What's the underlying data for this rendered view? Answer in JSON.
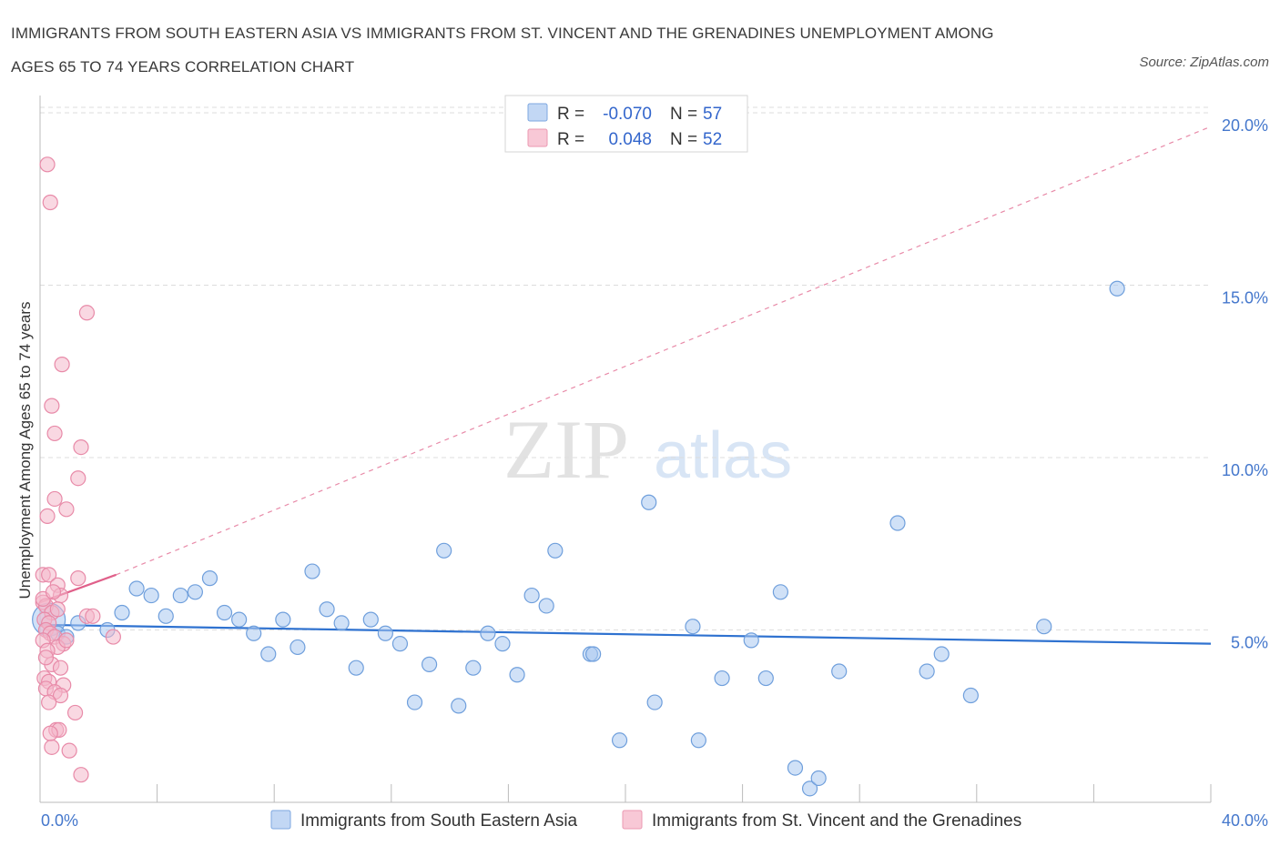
{
  "title": {
    "line1": "IMMIGRANTS FROM SOUTH EASTERN ASIA VS IMMIGRANTS FROM ST. VINCENT AND THE GRENADINES UNEMPLOYMENT AMONG",
    "line2": "AGES 65 TO 74 YEARS CORRELATION CHART"
  },
  "source": "Source: ZipAtlas.com",
  "watermark": {
    "zip": "ZIP",
    "atlas": "atlas"
  },
  "stats": {
    "r_label": "R =",
    "n_label": "N =",
    "series1": {
      "r": "-0.070",
      "n": "57"
    },
    "series2": {
      "r": "0.048",
      "n": "52"
    }
  },
  "colors": {
    "blue_fill": "#a9c8f0",
    "blue_stroke": "#6f9fdc",
    "blue_line": "#2f72d0",
    "pink_fill": "#f4b8cb",
    "pink_stroke": "#e88aa8",
    "pink_line": "#e0608a",
    "grid": "#dddddd",
    "axis": "#bbbbbb"
  },
  "chart_data": {
    "type": "scatter",
    "title": "IMMIGRANTS FROM SOUTH EASTERN ASIA VS IMMIGRANTS FROM ST. VINCENT AND THE GRENADINES UNEMPLOYMENT AMONG AGES 65 TO 74 YEARS CORRELATION CHART",
    "xlabel": "",
    "ylabel": "Unemployment Among Ages 65 to 74 years",
    "xlim": [
      0,
      40
    ],
    "ylim": [
      0,
      20.5
    ],
    "x_tick_labels": [
      "0.0%",
      "40.0%"
    ],
    "y_ticks": [
      5,
      10,
      15,
      20
    ],
    "y_tick_labels": [
      "5.0%",
      "10.0%",
      "15.0%",
      "20.0%"
    ],
    "grid": true,
    "legend_position": "bottom-center",
    "series": [
      {
        "name": "Immigrants from South Eastern Asia",
        "color": "blue",
        "r": -0.07,
        "n": 57,
        "trend": {
          "x": [
            0,
            40
          ],
          "y": [
            5.15,
            4.6
          ]
        },
        "points": [
          [
            0.3,
            5.3
          ],
          [
            0.6,
            4.9
          ],
          [
            1.3,
            5.2
          ],
          [
            2.3,
            5.0
          ],
          [
            2.8,
            5.5
          ],
          [
            3.3,
            6.2
          ],
          [
            3.8,
            6.0
          ],
          [
            4.3,
            5.4
          ],
          [
            4.8,
            6.0
          ],
          [
            5.3,
            6.1
          ],
          [
            5.8,
            6.5
          ],
          [
            6.3,
            5.5
          ],
          [
            6.8,
            5.3
          ],
          [
            7.3,
            4.9
          ],
          [
            7.8,
            4.3
          ],
          [
            8.3,
            5.3
          ],
          [
            8.8,
            4.5
          ],
          [
            9.3,
            6.7
          ],
          [
            9.8,
            5.6
          ],
          [
            10.3,
            5.2
          ],
          [
            10.8,
            3.9
          ],
          [
            11.3,
            5.3
          ],
          [
            11.8,
            4.9
          ],
          [
            12.3,
            4.6
          ],
          [
            12.8,
            2.9
          ],
          [
            13.3,
            4.0
          ],
          [
            13.8,
            7.3
          ],
          [
            14.3,
            2.8
          ],
          [
            14.8,
            3.9
          ],
          [
            15.3,
            4.9
          ],
          [
            15.8,
            4.6
          ],
          [
            16.3,
            3.7
          ],
          [
            16.8,
            6.0
          ],
          [
            17.3,
            5.7
          ],
          [
            17.6,
            7.3
          ],
          [
            18.8,
            4.3
          ],
          [
            18.9,
            4.3
          ],
          [
            19.8,
            1.8
          ],
          [
            20.8,
            8.7
          ],
          [
            21.0,
            2.9
          ],
          [
            22.3,
            5.1
          ],
          [
            22.5,
            1.8
          ],
          [
            23.3,
            3.6
          ],
          [
            24.3,
            4.7
          ],
          [
            24.8,
            3.6
          ],
          [
            25.3,
            6.1
          ],
          [
            25.8,
            1.0
          ],
          [
            26.3,
            0.4
          ],
          [
            26.6,
            0.7
          ],
          [
            27.3,
            3.8
          ],
          [
            29.3,
            8.1
          ],
          [
            30.3,
            3.8
          ],
          [
            30.8,
            4.3
          ],
          [
            31.8,
            3.1
          ],
          [
            34.3,
            5.1
          ],
          [
            36.8,
            14.9
          ],
          [
            0.9,
            4.8
          ]
        ]
      },
      {
        "name": "Immigrants from St. Vincent and the Grenadines",
        "color": "pink",
        "r": 0.048,
        "n": 52,
        "trend": {
          "x": [
            0,
            2.6
          ],
          "y": [
            5.8,
            6.6
          ]
        },
        "trend_extension": {
          "x": [
            2.6,
            40
          ],
          "y": [
            6.6,
            19.6
          ]
        },
        "points": [
          [
            0.25,
            18.5
          ],
          [
            0.35,
            17.4
          ],
          [
            1.6,
            14.2
          ],
          [
            0.75,
            12.7
          ],
          [
            0.4,
            11.5
          ],
          [
            0.5,
            10.7
          ],
          [
            1.4,
            10.3
          ],
          [
            1.3,
            9.4
          ],
          [
            0.5,
            8.8
          ],
          [
            0.9,
            8.5
          ],
          [
            0.25,
            8.3
          ],
          [
            0.1,
            6.6
          ],
          [
            0.3,
            6.6
          ],
          [
            1.3,
            6.5
          ],
          [
            0.6,
            6.3
          ],
          [
            0.7,
            6.0
          ],
          [
            0.1,
            5.8
          ],
          [
            0.2,
            5.7
          ],
          [
            0.4,
            5.5
          ],
          [
            1.6,
            5.4
          ],
          [
            1.8,
            5.4
          ],
          [
            0.15,
            5.3
          ],
          [
            0.3,
            5.2
          ],
          [
            0.2,
            5.0
          ],
          [
            0.35,
            4.9
          ],
          [
            0.5,
            4.8
          ],
          [
            0.1,
            4.7
          ],
          [
            0.8,
            4.6
          ],
          [
            0.6,
            4.5
          ],
          [
            2.5,
            4.8
          ],
          [
            0.25,
            4.4
          ],
          [
            0.4,
            4.0
          ],
          [
            0.7,
            3.9
          ],
          [
            0.15,
            3.6
          ],
          [
            0.3,
            3.5
          ],
          [
            0.8,
            3.4
          ],
          [
            0.2,
            3.3
          ],
          [
            0.5,
            3.2
          ],
          [
            0.7,
            3.1
          ],
          [
            0.3,
            2.9
          ],
          [
            1.2,
            2.6
          ],
          [
            0.55,
            2.1
          ],
          [
            0.65,
            2.1
          ],
          [
            0.4,
            1.6
          ],
          [
            1.0,
            1.5
          ],
          [
            1.4,
            0.8
          ],
          [
            0.1,
            5.9
          ],
          [
            0.45,
            6.1
          ],
          [
            0.2,
            4.2
          ],
          [
            0.6,
            5.6
          ],
          [
            0.35,
            2.0
          ],
          [
            0.9,
            4.7
          ]
        ]
      }
    ]
  }
}
